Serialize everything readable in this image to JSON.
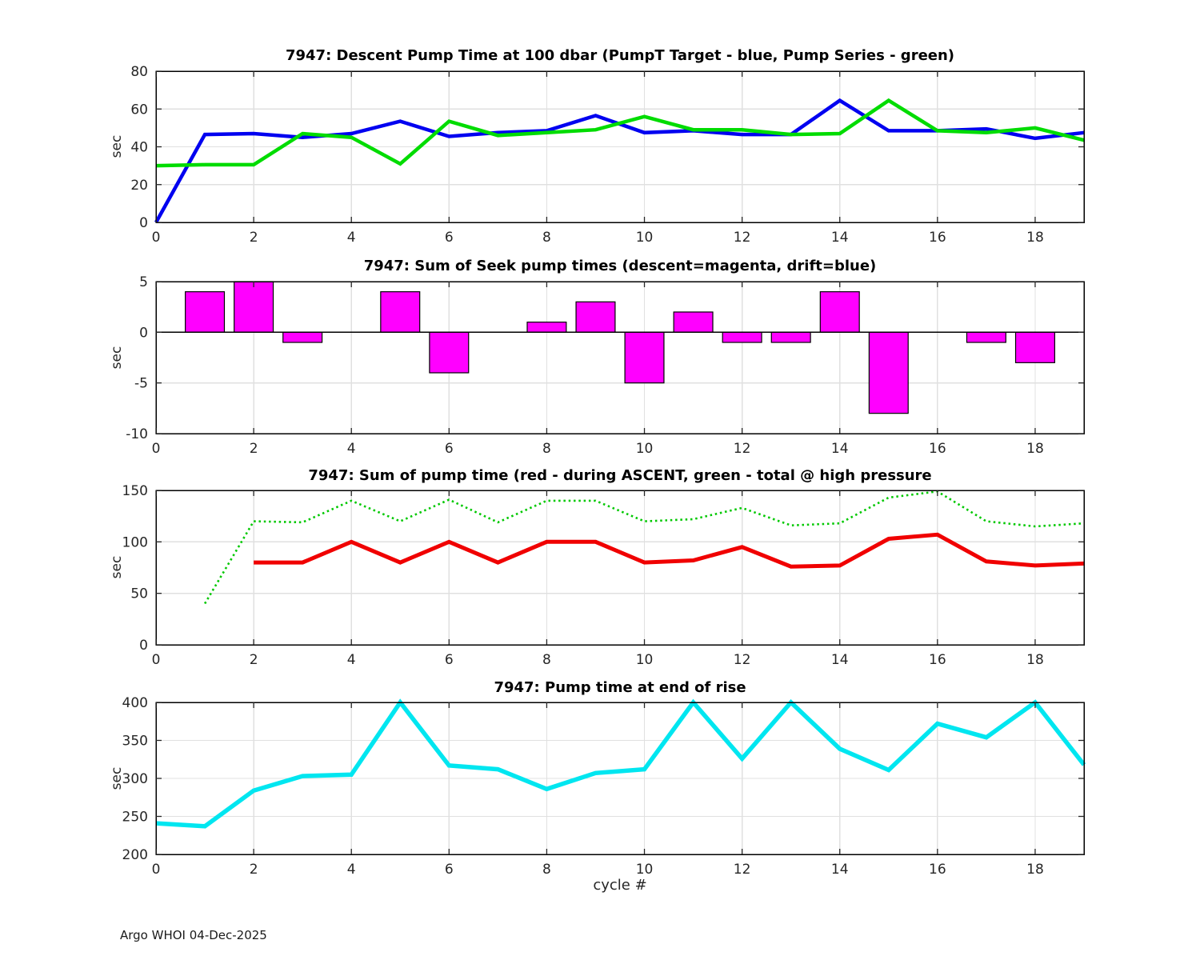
{
  "page": {
    "footer": "Argo WHOI 04-Dec-2025",
    "xlabel": "cycle #",
    "background": "#ffffff",
    "grid_color": "#e0e0e0",
    "frame_color": "#000000",
    "tick_color": "#262626"
  },
  "chart_data": [
    {
      "type": "line",
      "title": "7947: Descent Pump Time at 100 dbar (PumpT Target - blue, Pump Series - green)",
      "ylabel": "sec",
      "xlim": [
        0,
        19
      ],
      "ylim": [
        0,
        80
      ],
      "xticks": [
        0,
        2,
        4,
        6,
        8,
        10,
        12,
        14,
        16,
        18
      ],
      "yticks": [
        0,
        20,
        40,
        60,
        80
      ],
      "grid": true,
      "x": [
        0,
        1,
        2,
        3,
        4,
        5,
        6,
        7,
        8,
        9,
        10,
        11,
        12,
        13,
        14,
        15,
        16,
        17,
        18,
        19
      ],
      "series": [
        {
          "name": "PumpT Target",
          "color": "#0000f0",
          "style": "solid",
          "width": 4.5,
          "values": [
            0,
            46.5,
            47,
            45,
            47,
            53.5,
            45.5,
            47.5,
            48.5,
            56.5,
            47.5,
            48.5,
            46.5,
            46.5,
            64.5,
            48.5,
            48.5,
            49.5,
            44.5,
            47.5
          ]
        },
        {
          "name": "Pump Series",
          "color": "#00dc00",
          "style": "solid",
          "width": 4.5,
          "values": [
            30,
            30.5,
            30.5,
            47,
            45,
            31,
            53.5,
            46,
            47.5,
            49,
            56,
            49,
            49,
            46.5,
            47,
            64.5,
            48.5,
            47.5,
            50,
            43.5
          ]
        }
      ]
    },
    {
      "type": "bar",
      "title": "7947: Sum of Seek pump times (descent=magenta, drift=blue)",
      "ylabel": "sec",
      "xlim": [
        0,
        19
      ],
      "ylim": [
        -10,
        5
      ],
      "xticks": [
        0,
        2,
        4,
        6,
        8,
        10,
        12,
        14,
        16,
        18
      ],
      "yticks": [
        5,
        0,
        -5,
        -10
      ],
      "grid": true,
      "bar_color": "#ff00ff",
      "bar_edge_color": "#000000",
      "x": [
        0,
        1,
        2,
        3,
        4,
        5,
        6,
        7,
        8,
        9,
        10,
        11,
        12,
        13,
        14,
        15,
        16,
        17,
        18,
        19
      ],
      "values": [
        0,
        4,
        5,
        -1,
        0,
        4,
        -4,
        0,
        1,
        3,
        -5,
        2,
        -1,
        -1,
        4,
        -8,
        0,
        -1,
        -3,
        0
      ]
    },
    {
      "type": "line",
      "title": "7947: Sum of pump time (red - during ASCENT, green - total @ high pressure",
      "ylabel": "sec",
      "xlim": [
        0,
        19
      ],
      "ylim": [
        0,
        150
      ],
      "xticks": [
        0,
        2,
        4,
        6,
        8,
        10,
        12,
        14,
        16,
        18
      ],
      "yticks": [
        0,
        50,
        100,
        150
      ],
      "grid": true,
      "x": [
        0,
        1,
        2,
        3,
        4,
        5,
        6,
        7,
        8,
        9,
        10,
        11,
        12,
        13,
        14,
        15,
        16,
        17,
        18,
        19
      ],
      "series": [
        {
          "name": "total @ high pressure",
          "color": "#00c800",
          "style": "dotted",
          "width": 2.6,
          "values": [
            null,
            40,
            120,
            119,
            140,
            120,
            141,
            119,
            140,
            140,
            120,
            122,
            133,
            116,
            118,
            143,
            149,
            120,
            115,
            118
          ]
        },
        {
          "name": "during ASCENT",
          "color": "#f00000",
          "style": "solid",
          "width": 5,
          "values": [
            null,
            null,
            80,
            80,
            100,
            80,
            100,
            80,
            100,
            100,
            80,
            82,
            95,
            76,
            77,
            103,
            107,
            81,
            77,
            79
          ]
        }
      ]
    },
    {
      "type": "line",
      "title": "7947: Pump time at end of rise",
      "ylabel": "sec",
      "xlim": [
        0,
        19
      ],
      "ylim": [
        200,
        400
      ],
      "xticks": [
        0,
        2,
        4,
        6,
        8,
        10,
        12,
        14,
        16,
        18
      ],
      "yticks": [
        200,
        250,
        300,
        350,
        400
      ],
      "grid": true,
      "x": [
        0,
        1,
        2,
        3,
        4,
        5,
        6,
        7,
        8,
        9,
        10,
        11,
        12,
        13,
        14,
        15,
        16,
        17,
        18,
        19
      ],
      "series": [
        {
          "name": "pump time at end of rise",
          "color": "#00e6f0",
          "style": "solid",
          "width": 5.5,
          "values": [
            241,
            237,
            284,
            303,
            305,
            400,
            317,
            312,
            286,
            307,
            312,
            400,
            326,
            400,
            339,
            311,
            372,
            354,
            400,
            318
          ]
        }
      ]
    }
  ]
}
